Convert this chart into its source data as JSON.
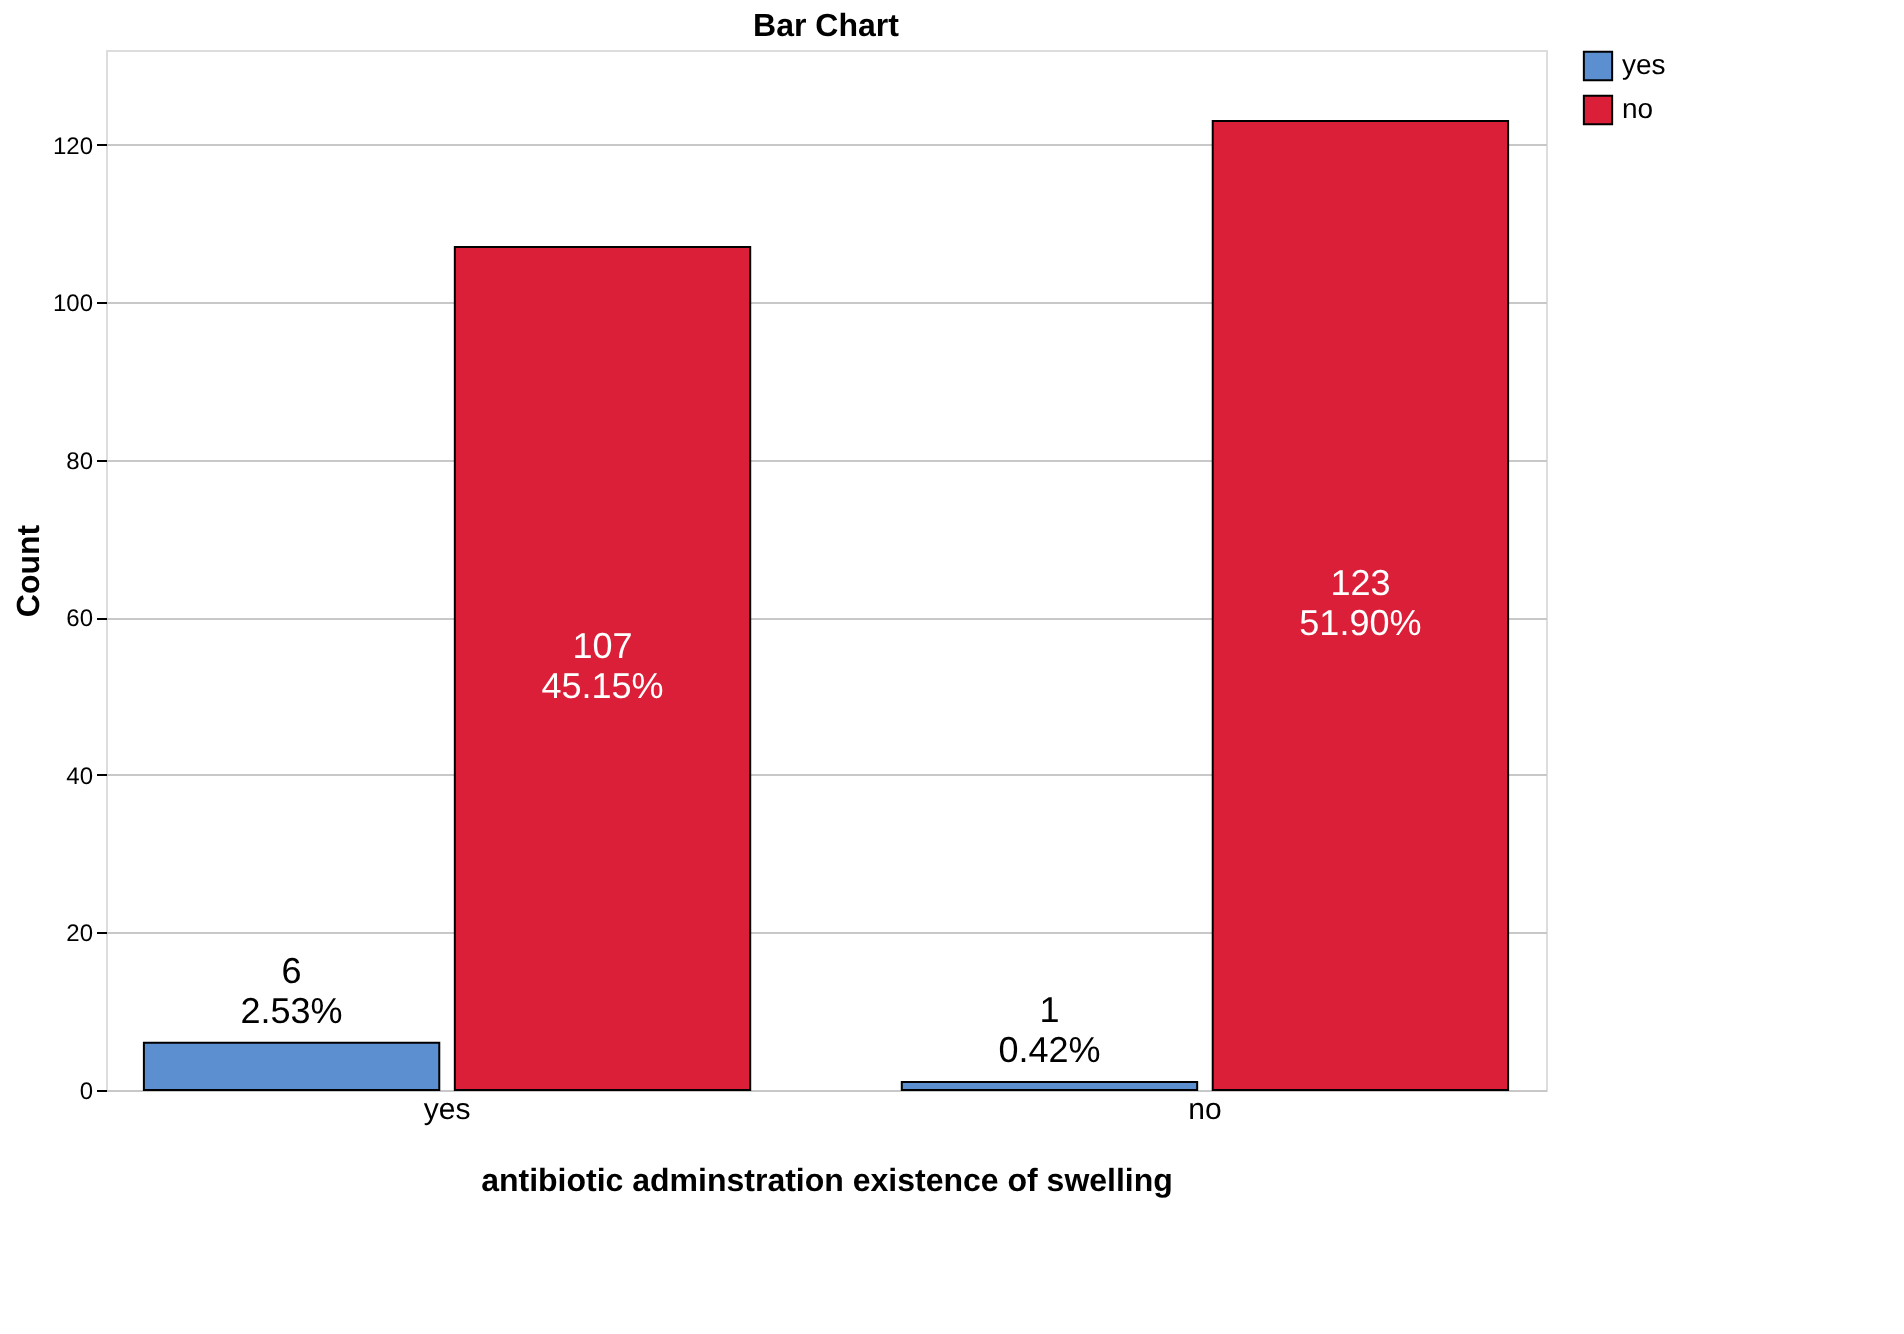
{
  "chart_data": {
    "type": "bar",
    "title": "Bar Chart",
    "xlabel": "antibiotic adminstration existence of swelling",
    "ylabel": "Count",
    "categories": [
      "yes",
      "no"
    ],
    "series": [
      {
        "name": "yes",
        "color": "#5b8fd0",
        "values": [
          6,
          1
        ],
        "value_labels": [
          "6\n2.53%",
          "1\n0.42%"
        ]
      },
      {
        "name": "no",
        "color": "#dc1f38",
        "values": [
          107,
          123
        ],
        "value_labels": [
          "107\n45.15%",
          "123\n51.90%"
        ]
      }
    ],
    "ylim": [
      0,
      132
    ],
    "yticks": [
      0,
      20,
      40,
      60,
      80,
      100,
      120
    ],
    "grid": "y",
    "legend": "top right"
  }
}
